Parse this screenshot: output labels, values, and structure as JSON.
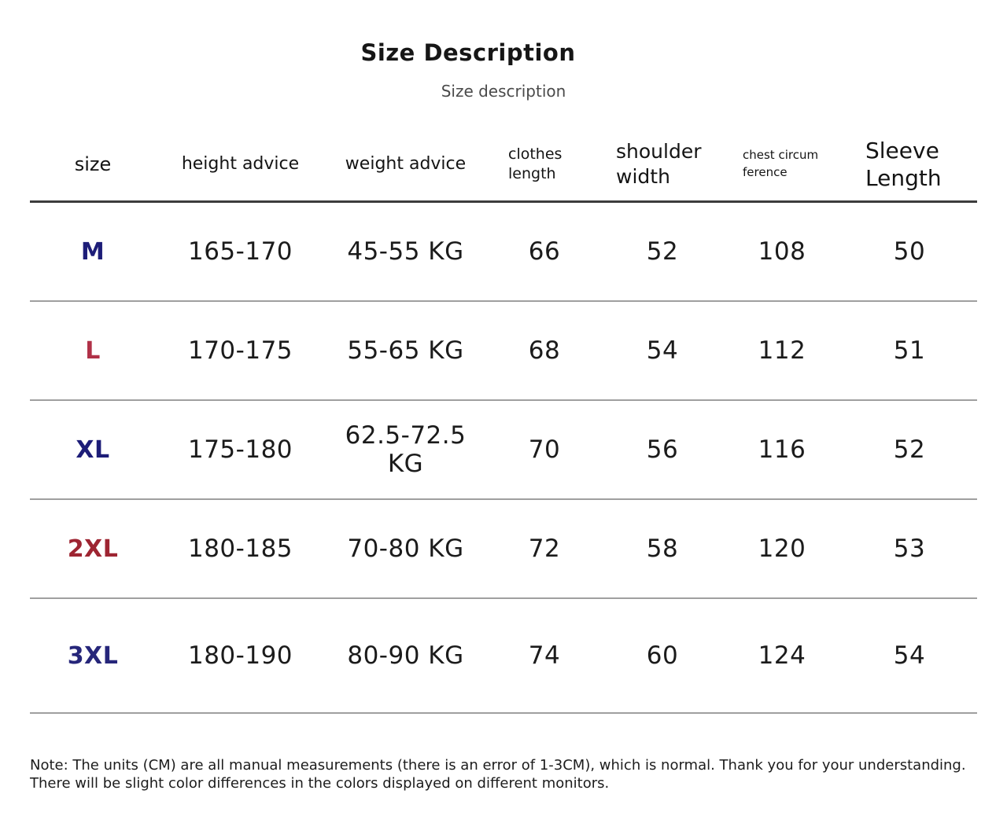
{
  "page": {
    "title": "Size Description",
    "subtitle": "Size description",
    "note": "Note: The units (CM) are all manual measurements (there is an error of 1-3CM), which is normal. Thank you for your understanding. There will be slight color differences in the colors displayed on different monitors.",
    "units": "CM"
  },
  "chart_data": {
    "type": "table",
    "title": "Size Description",
    "columns": [
      "size",
      "height advice",
      "weight advice",
      "clothes length",
      "shoulder width",
      "chest circumference",
      "Sleeve Length"
    ],
    "rows": [
      [
        "M",
        "165-170",
        "45-55 KG",
        "66",
        "52",
        "108",
        "50"
      ],
      [
        "L",
        "170-175",
        "55-65 KG",
        "68",
        "54",
        "112",
        "51"
      ],
      [
        "XL",
        "175-180",
        "62.5-72.5 KG",
        "70",
        "56",
        "116",
        "52"
      ],
      [
        "2XL",
        "180-185",
        "70-80 KG",
        "72",
        "58",
        "120",
        "53"
      ],
      [
        "3XL",
        "180-190",
        "80-90 KG",
        "74",
        "60",
        "124",
        "54"
      ]
    ],
    "size_label_colors": [
      "#1d1d78",
      "#b03148",
      "#1d1d78",
      "#9e2532",
      "#26267a"
    ],
    "layout": {
      "header_divider_color": "#3c3c3c",
      "row_divider_color": "#9f9f9f",
      "background": "#ffffff"
    }
  }
}
